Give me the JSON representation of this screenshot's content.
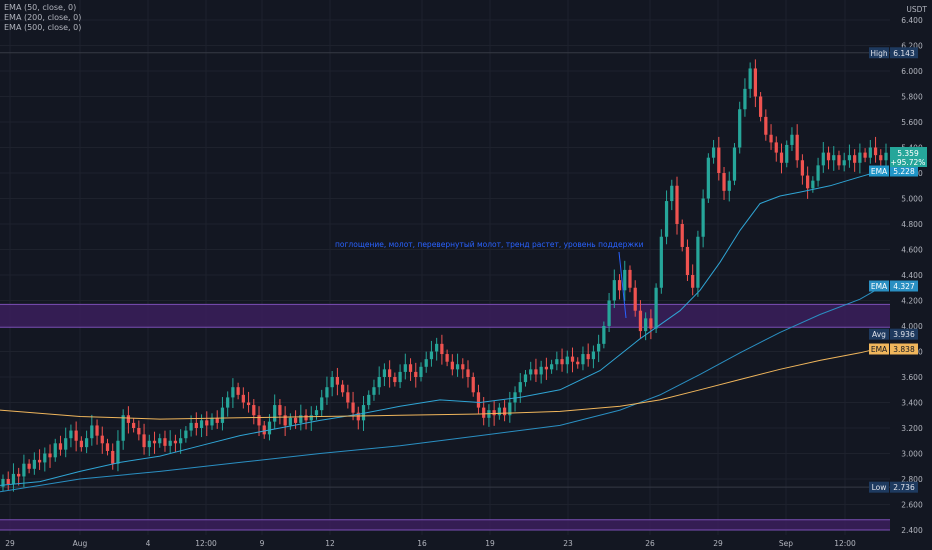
{
  "legend": [
    "EMA (50, close, 0)",
    "EMA (200, close, 0)",
    "EMA (500, close, 0)"
  ],
  "annotation": "поглощение, молот, перевернутый молот, тренд растет, уровень поддержки",
  "chart_data": {
    "type": "candlestick",
    "currency": "USDT",
    "ylim": [
      2.4,
      6.5
    ],
    "y_ticks": [
      "6.400",
      "6.200",
      "6.000",
      "5.800",
      "5.600",
      "5.400",
      "5.200",
      "5.000",
      "4.800",
      "4.600",
      "4.400",
      "4.200",
      "4.000",
      "3.800",
      "3.600",
      "3.400",
      "3.200",
      "3.000",
      "2.800",
      "2.600",
      "2.400"
    ],
    "x_ticks": [
      "29",
      "Aug",
      "4",
      "12:00",
      "9",
      "12",
      "16",
      "19",
      "23",
      "26",
      "29",
      "Sep",
      "12:00"
    ],
    "high": {
      "label": "High",
      "value": 6.143
    },
    "low": {
      "label": "Low",
      "value": 2.736
    },
    "avg": {
      "label": "Avg",
      "value": 3.936
    },
    "last_price": {
      "value": "5.359",
      "change": "+95.72%"
    },
    "ema_badges": [
      {
        "label": "EMA",
        "value": "5.228",
        "color": "#2196c8"
      },
      {
        "label": "EMA",
        "value": "4.327",
        "color": "#2a8fc2"
      },
      {
        "label": "EMA",
        "value": "3.838",
        "color": "#f0b65c"
      }
    ],
    "zones": [
      {
        "from": 3.99,
        "to": 4.17,
        "color": "#3b1f5c"
      },
      {
        "from": 2.4,
        "to": 2.48,
        "color": "#3b1f5c"
      }
    ],
    "series": [
      {
        "name": "EMA (50, close, 0)",
        "color": "#2fa4d4",
        "points": [
          [
            0,
            2.75
          ],
          [
            40,
            2.78
          ],
          [
            80,
            2.86
          ],
          [
            120,
            2.93
          ],
          [
            160,
            2.98
          ],
          [
            200,
            3.06
          ],
          [
            240,
            3.14
          ],
          [
            280,
            3.2
          ],
          [
            320,
            3.26
          ],
          [
            360,
            3.31
          ],
          [
            400,
            3.37
          ],
          [
            440,
            3.42
          ],
          [
            480,
            3.4
          ],
          [
            520,
            3.44
          ],
          [
            560,
            3.5
          ],
          [
            600,
            3.65
          ],
          [
            640,
            3.9
          ],
          [
            680,
            4.12
          ],
          [
            700,
            4.28
          ],
          [
            720,
            4.5
          ],
          [
            740,
            4.75
          ],
          [
            760,
            4.96
          ],
          [
            780,
            5.02
          ],
          [
            800,
            5.05
          ],
          [
            830,
            5.1
          ],
          [
            860,
            5.17
          ],
          [
            886,
            5.228
          ]
        ]
      },
      {
        "name": "EMA (200, close, 0)",
        "color": "#2a8fc2",
        "points": [
          [
            0,
            2.7
          ],
          [
            80,
            2.8
          ],
          [
            160,
            2.86
          ],
          [
            240,
            2.93
          ],
          [
            320,
            3.0
          ],
          [
            400,
            3.06
          ],
          [
            480,
            3.14
          ],
          [
            560,
            3.22
          ],
          [
            620,
            3.34
          ],
          [
            660,
            3.46
          ],
          [
            700,
            3.62
          ],
          [
            740,
            3.79
          ],
          [
            780,
            3.95
          ],
          [
            820,
            4.09
          ],
          [
            860,
            4.21
          ],
          [
            886,
            4.327
          ]
        ]
      },
      {
        "name": "EMA (500, close, 0)",
        "color": "#f0b65c",
        "points": [
          [
            0,
            3.34
          ],
          [
            80,
            3.29
          ],
          [
            160,
            3.27
          ],
          [
            240,
            3.28
          ],
          [
            320,
            3.29
          ],
          [
            400,
            3.3
          ],
          [
            480,
            3.31
          ],
          [
            560,
            3.33
          ],
          [
            620,
            3.37
          ],
          [
            660,
            3.42
          ],
          [
            700,
            3.5
          ],
          [
            740,
            3.58
          ],
          [
            780,
            3.66
          ],
          [
            820,
            3.73
          ],
          [
            860,
            3.79
          ],
          [
            886,
            3.838
          ]
        ]
      }
    ],
    "candles": [
      [
        2.74,
        2.8
      ],
      [
        2.8,
        2.76
      ],
      [
        2.76,
        2.84
      ],
      [
        2.84,
        2.82
      ],
      [
        2.82,
        2.92
      ],
      [
        2.92,
        2.88
      ],
      [
        2.88,
        2.95
      ],
      [
        2.95,
        2.93
      ],
      [
        2.93,
        3.0
      ],
      [
        3.0,
        2.97
      ],
      [
        2.97,
        3.08
      ],
      [
        3.08,
        3.03
      ],
      [
        3.03,
        3.12
      ],
      [
        3.12,
        3.18
      ],
      [
        3.18,
        3.1
      ],
      [
        3.1,
        3.05
      ],
      [
        3.05,
        3.12
      ],
      [
        3.12,
        3.22
      ],
      [
        3.22,
        3.14
      ],
      [
        3.14,
        3.08
      ],
      [
        3.08,
        3.02
      ],
      [
        3.02,
        2.92
      ],
      [
        2.92,
        3.1
      ],
      [
        3.1,
        3.3
      ],
      [
        3.3,
        3.24
      ],
      [
        3.24,
        3.2
      ],
      [
        3.2,
        3.15
      ],
      [
        3.15,
        3.05
      ],
      [
        3.05,
        3.1
      ],
      [
        3.1,
        3.08
      ],
      [
        3.08,
        3.12
      ],
      [
        3.12,
        3.06
      ],
      [
        3.06,
        3.1
      ],
      [
        3.1,
        3.08
      ],
      [
        3.08,
        3.12
      ],
      [
        3.12,
        3.18
      ],
      [
        3.18,
        3.24
      ],
      [
        3.24,
        3.2
      ],
      [
        3.2,
        3.26
      ],
      [
        3.26,
        3.22
      ],
      [
        3.22,
        3.28
      ],
      [
        3.28,
        3.24
      ],
      [
        3.24,
        3.36
      ],
      [
        3.36,
        3.44
      ],
      [
        3.44,
        3.52
      ],
      [
        3.52,
        3.46
      ],
      [
        3.46,
        3.4
      ],
      [
        3.4,
        3.38
      ],
      [
        3.38,
        3.3
      ],
      [
        3.3,
        3.22
      ],
      [
        3.22,
        3.15
      ],
      [
        3.15,
        3.25
      ],
      [
        3.25,
        3.38
      ],
      [
        3.38,
        3.3
      ],
      [
        3.3,
        3.22
      ],
      [
        3.22,
        3.28
      ],
      [
        3.28,
        3.24
      ],
      [
        3.24,
        3.3
      ],
      [
        3.3,
        3.26
      ],
      [
        3.26,
        3.3
      ],
      [
        3.3,
        3.34
      ],
      [
        3.34,
        3.44
      ],
      [
        3.44,
        3.52
      ],
      [
        3.52,
        3.6
      ],
      [
        3.6,
        3.54
      ],
      [
        3.54,
        3.48
      ],
      [
        3.48,
        3.4
      ],
      [
        3.4,
        3.32
      ],
      [
        3.32,
        3.26
      ],
      [
        3.26,
        3.38
      ],
      [
        3.38,
        3.46
      ],
      [
        3.46,
        3.52
      ],
      [
        3.52,
        3.6
      ],
      [
        3.6,
        3.66
      ],
      [
        3.66,
        3.6
      ],
      [
        3.6,
        3.56
      ],
      [
        3.56,
        3.64
      ],
      [
        3.64,
        3.7
      ],
      [
        3.7,
        3.64
      ],
      [
        3.64,
        3.6
      ],
      [
        3.6,
        3.68
      ],
      [
        3.68,
        3.74
      ],
      [
        3.74,
        3.8
      ],
      [
        3.8,
        3.86
      ],
      [
        3.86,
        3.78
      ],
      [
        3.78,
        3.72
      ],
      [
        3.72,
        3.66
      ],
      [
        3.66,
        3.7
      ],
      [
        3.7,
        3.66
      ],
      [
        3.66,
        3.6
      ],
      [
        3.6,
        3.48
      ],
      [
        3.48,
        3.36
      ],
      [
        3.36,
        3.28
      ],
      [
        3.28,
        3.34
      ],
      [
        3.34,
        3.3
      ],
      [
        3.3,
        3.36
      ],
      [
        3.36,
        3.3
      ],
      [
        3.3,
        3.4
      ],
      [
        3.4,
        3.48
      ],
      [
        3.48,
        3.56
      ],
      [
        3.56,
        3.62
      ],
      [
        3.62,
        3.66
      ],
      [
        3.66,
        3.62
      ],
      [
        3.62,
        3.68
      ],
      [
        3.68,
        3.66
      ],
      [
        3.66,
        3.7
      ],
      [
        3.7,
        3.74
      ],
      [
        3.74,
        3.7
      ],
      [
        3.7,
        3.76
      ],
      [
        3.76,
        3.72
      ],
      [
        3.72,
        3.7
      ],
      [
        3.7,
        3.78
      ],
      [
        3.78,
        3.74
      ],
      [
        3.74,
        3.8
      ],
      [
        3.8,
        3.86
      ],
      [
        3.86,
        4.0
      ],
      [
        4.0,
        4.2
      ],
      [
        4.2,
        4.36
      ],
      [
        4.36,
        4.28
      ],
      [
        4.28,
        4.44
      ],
      [
        4.44,
        4.3
      ],
      [
        4.3,
        4.12
      ],
      [
        4.12,
        3.96
      ],
      [
        3.96,
        4.06
      ],
      [
        4.06,
        3.98
      ],
      [
        3.98,
        4.3
      ],
      [
        4.3,
        4.7
      ],
      [
        4.7,
        4.98
      ],
      [
        4.98,
        5.1
      ],
      [
        5.1,
        4.8
      ],
      [
        4.8,
        4.62
      ],
      [
        4.62,
        4.4
      ],
      [
        4.4,
        4.3
      ],
      [
        4.3,
        4.7
      ],
      [
        4.7,
        5.0
      ],
      [
        5.0,
        5.32
      ],
      [
        5.32,
        5.4
      ],
      [
        5.4,
        5.2
      ],
      [
        5.2,
        5.06
      ],
      [
        5.06,
        5.14
      ],
      [
        5.14,
        5.4
      ],
      [
        5.4,
        5.7
      ],
      [
        5.7,
        5.86
      ],
      [
        5.86,
        6.02
      ],
      [
        6.02,
        5.8
      ],
      [
        5.8,
        5.64
      ],
      [
        5.64,
        5.5
      ],
      [
        5.5,
        5.44
      ],
      [
        5.44,
        5.36
      ],
      [
        5.36,
        5.28
      ],
      [
        5.28,
        5.42
      ],
      [
        5.42,
        5.5
      ],
      [
        5.5,
        5.3
      ],
      [
        5.3,
        5.18
      ],
      [
        5.18,
        5.08
      ],
      [
        5.08,
        5.14
      ],
      [
        5.14,
        5.26
      ],
      [
        5.26,
        5.36
      ],
      [
        5.36,
        5.3
      ],
      [
        5.3,
        5.34
      ],
      [
        5.34,
        5.26
      ],
      [
        5.26,
        5.3
      ],
      [
        5.3,
        5.34
      ],
      [
        5.34,
        5.28
      ],
      [
        5.28,
        5.36
      ],
      [
        5.36,
        5.32
      ],
      [
        5.32,
        5.4
      ],
      [
        5.4,
        5.34
      ],
      [
        5.34,
        5.3
      ],
      [
        5.3,
        5.359
      ]
    ]
  }
}
